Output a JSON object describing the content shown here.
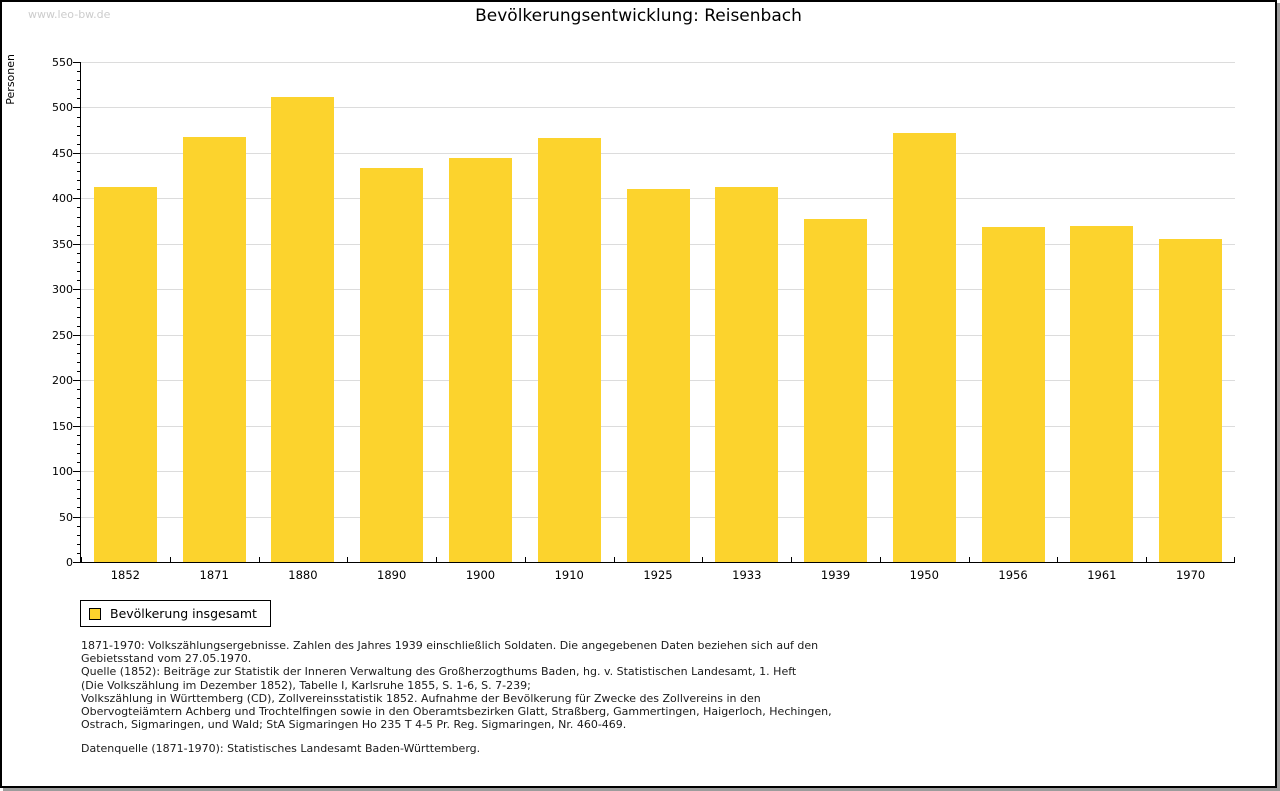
{
  "watermark": "www.leo-bw.de",
  "title": "Bevölkerungsentwicklung: Reisenbach",
  "chart_data": {
    "type": "bar",
    "title": "Bevölkerungsentwicklung: Reisenbach",
    "xlabel": "",
    "ylabel": "Personen",
    "ylim": [
      0,
      550
    ],
    "ytick_step": 50,
    "ytick_minor_step": 10,
    "grid": true,
    "categories": [
      "1852",
      "1871",
      "1880",
      "1890",
      "1900",
      "1910",
      "1925",
      "1933",
      "1939",
      "1950",
      "1956",
      "1961",
      "1970"
    ],
    "series": [
      {
        "name": "Bevölkerung insgesamt",
        "values": [
          412,
          468,
          511,
          433,
          444,
          466,
          410,
          413,
          377,
          472,
          368,
          370,
          355
        ]
      }
    ],
    "bar_color": "#fcd32d",
    "gridline_color": "#dcdcdc",
    "legend_position": "bottom-left"
  },
  "legend": {
    "label": "Bevölkerung insgesamt",
    "swatch_color": "#fcd32d"
  },
  "footnotes": [
    "1871-1970: Volkszählungsergebnisse. Zahlen des Jahres 1939 einschließlich Soldaten. Die angegebenen Daten beziehen sich auf den",
    "Gebietsstand vom 27.05.1970.",
    "Quelle (1852): Beiträge zur Statistik der Inneren Verwaltung des Großherzogthums Baden, hg. v. Statistischen Landesamt, 1. Heft",
    "(Die Volkszählung im Dezember 1852), Tabelle I, Karlsruhe 1855, S. 1-6, S. 7-239;",
    "Volkszählung in Württemberg (CD), Zollvereinsstatistik 1852. Aufnahme der Bevölkerung für Zwecke des Zollvereins in den",
    "Obervogteiämtern Achberg und Trochtelfingen sowie in den Oberamtsbezirken Glatt, Straßberg, Gammertingen, Haigerloch, Hechingen,",
    "Ostrach, Sigmaringen, und Wald; StA Sigmaringen Ho 235 T 4-5 Pr. Reg. Sigmaringen, Nr. 460-469."
  ],
  "datasource": "Datenquelle (1871-1970): Statistisches Landesamt Baden-Württemberg."
}
